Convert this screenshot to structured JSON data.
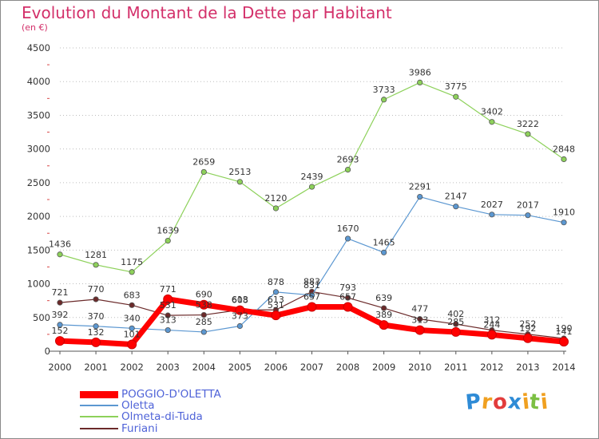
{
  "header": {
    "title": "Evolution du Montant de la Dette par Habitant",
    "subtitle": "(en €)"
  },
  "chart_data": {
    "type": "line",
    "title": "Evolution du Montant de la Dette par Habitant",
    "subtitle": "(en €)",
    "xlabel": "",
    "ylabel": "",
    "categories": [
      "2000",
      "2001",
      "2002",
      "2003",
      "2004",
      "2005",
      "2006",
      "2007",
      "2008",
      "2009",
      "2010",
      "2011",
      "2012",
      "2013",
      "2014"
    ],
    "ylim": [
      0,
      4500
    ],
    "yticks": [
      0,
      500,
      1000,
      1500,
      2000,
      2500,
      3000,
      3500,
      4000,
      4500
    ],
    "grid": "horizontal dotted",
    "legend_position": "bottom-left",
    "series": [
      {
        "name": "POGGIO-D'OLETTA",
        "color": "#ff0000",
        "values": [
          152,
          132,
          101,
          771,
          690,
          608,
          531,
          657,
          657,
          389,
          313,
          285,
          244,
          192,
          141
        ]
      },
      {
        "name": "Oletta",
        "color": "#5b97d1",
        "values": [
          392,
          370,
          340,
          313,
          285,
          373,
          878,
          831,
          1670,
          1465,
          2291,
          2147,
          2027,
          2017,
          1910
        ]
      },
      {
        "name": "Olmeta-di-Tuda",
        "color": "#8dd15a",
        "values": [
          1436,
          1281,
          1175,
          1639,
          2659,
          2513,
          2120,
          2439,
          2693,
          3733,
          3986,
          3775,
          3402,
          3222,
          2848
        ]
      },
      {
        "name": "Furiani",
        "color": "#6b2a2a",
        "values": [
          721,
          770,
          683,
          531,
          538,
          613,
          613,
          883,
          793,
          639,
          477,
          402,
          312,
          252,
          190
        ]
      }
    ]
  },
  "logo": {
    "letters": [
      "P",
      "r",
      "o",
      "x",
      "i",
      "t",
      "i"
    ],
    "colors": [
      "#2e8bd6",
      "#f0a020",
      "#e23c3c",
      "#2e8bd6",
      "#f0a020",
      "#7cc043",
      "#f0a020"
    ]
  }
}
